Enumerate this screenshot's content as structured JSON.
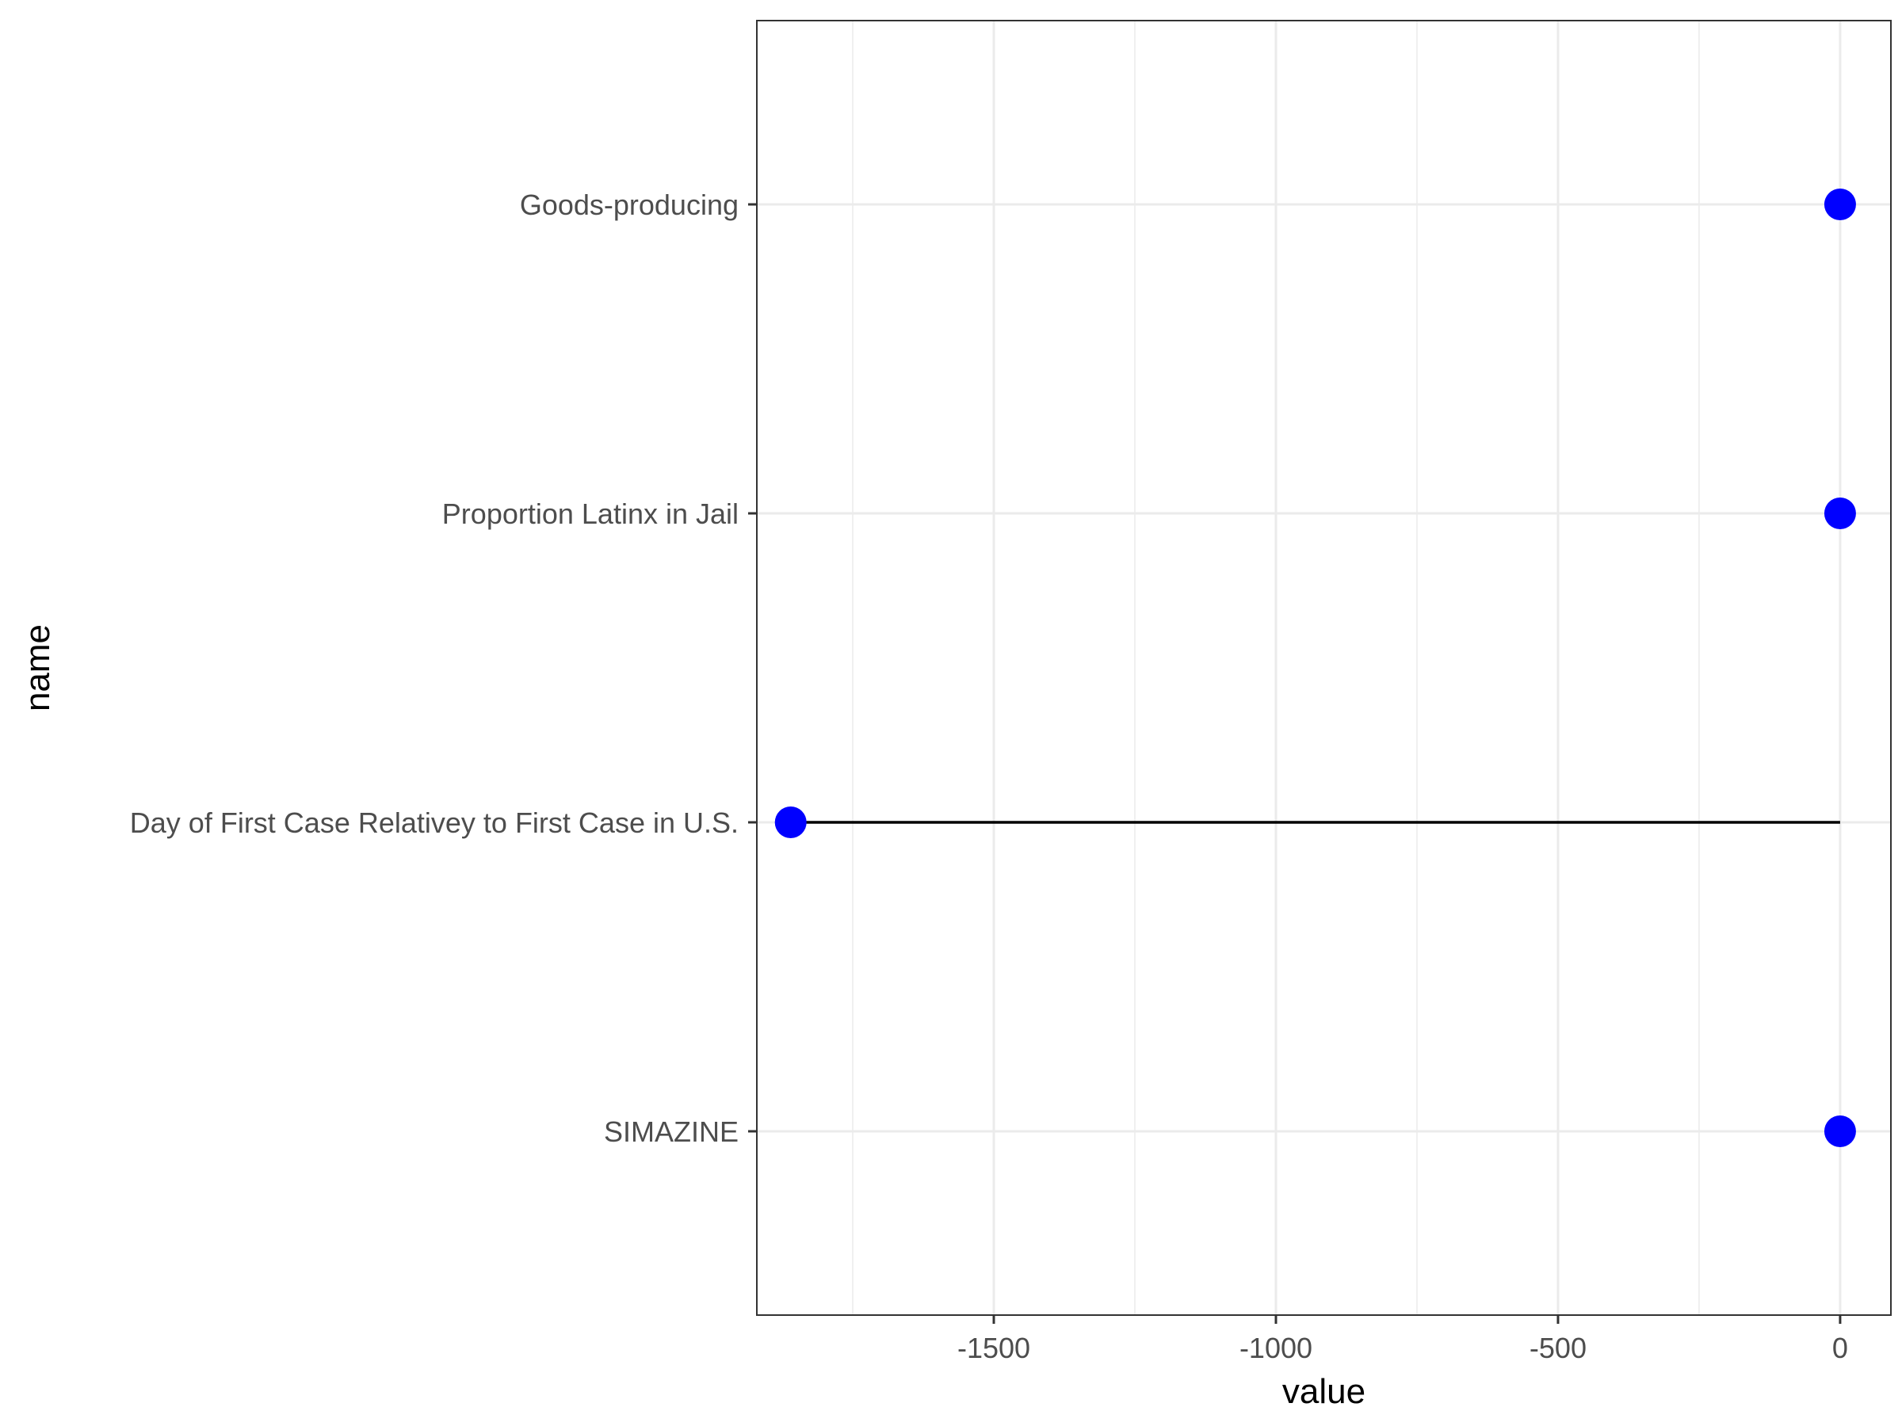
{
  "chart_data": {
    "type": "lollipop",
    "categories": [
      "Goods-producing",
      "Proportion Latinx in Jail",
      "Day of First Case Relativey to First Case in U.S.",
      "SIMAZINE"
    ],
    "values": [
      0,
      0,
      -1860,
      0
    ],
    "xlabel": "value",
    "ylabel": "name",
    "xlim": [
      -1920,
      90
    ],
    "xticks": [
      -1500,
      -1000,
      -500,
      0
    ],
    "xtick_labels": [
      "-1500",
      "-1000",
      "-500",
      "0"
    ],
    "grid": true,
    "colors": {
      "point": "#0000ff",
      "segment": "#000000",
      "grid": "#ebebeb",
      "panel_border": "#333333"
    }
  }
}
